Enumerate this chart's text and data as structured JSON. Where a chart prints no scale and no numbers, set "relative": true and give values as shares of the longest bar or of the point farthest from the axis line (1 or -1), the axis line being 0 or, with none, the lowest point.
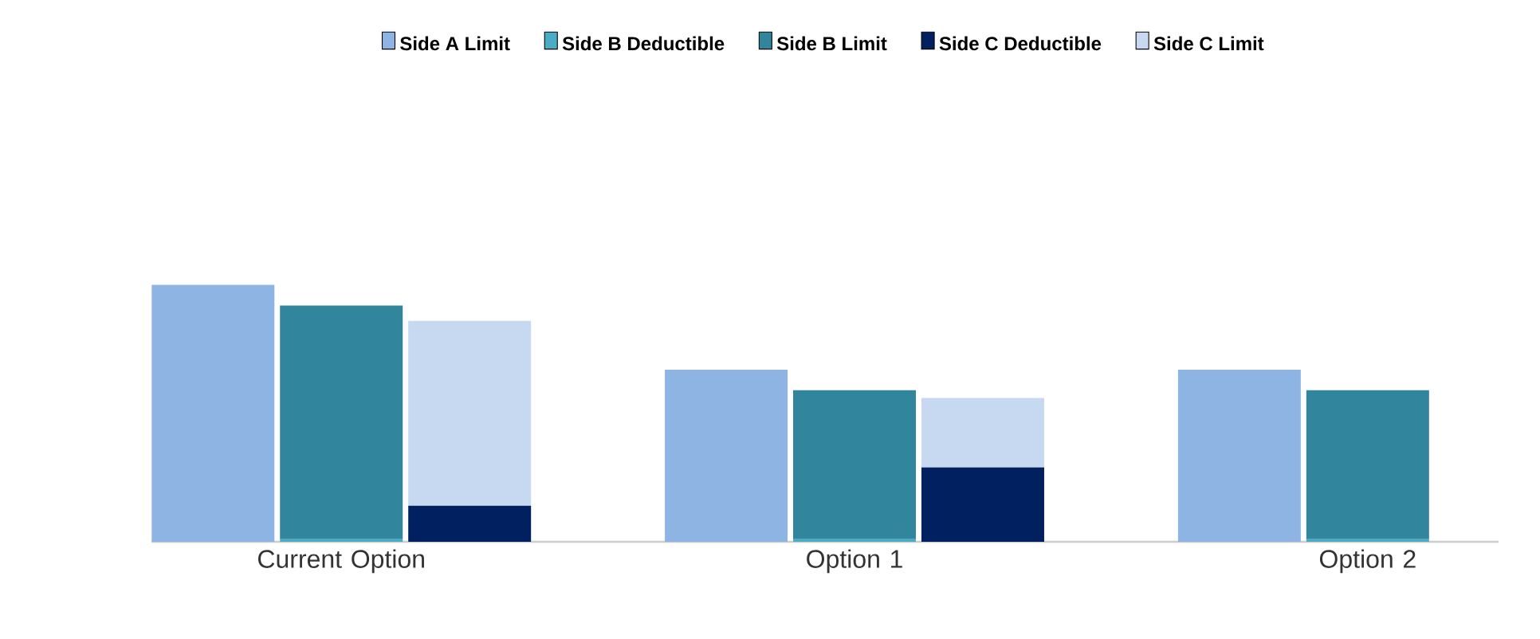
{
  "chart_data": {
    "type": "bar",
    "stacked": true,
    "relative": true,
    "legend": "top",
    "categories": [
      null,
      "Current Option",
      null,
      null,
      null,
      "Option 1",
      null,
      null,
      null,
      "Option 2",
      null
    ],
    "series": [
      {
        "name": "Side A Limit",
        "color": "#8eb4e3",
        "values": [
          1,
          null,
          null,
          null,
          0.67,
          null,
          null,
          null,
          0.67,
          null,
          null
        ]
      },
      {
        "name": "Side B Deductible",
        "color": "#4bacc6",
        "values": [
          null,
          0.01,
          null,
          null,
          null,
          0.01,
          null,
          null,
          null,
          0.01,
          null
        ]
      },
      {
        "name": "Side B Limit",
        "color": "#31859c",
        "values": [
          null,
          0.91,
          null,
          null,
          null,
          0.58,
          null,
          null,
          null,
          0.58,
          null
        ]
      },
      {
        "name": "Side C Deductible",
        "color": "#002060",
        "values": [
          null,
          null,
          0.14,
          null,
          null,
          null,
          0.29,
          null,
          null,
          null,
          null
        ]
      },
      {
        "name": "Side C Limit",
        "color": "#c6d9f1",
        "values": [
          null,
          null,
          0.72,
          null,
          null,
          null,
          0.27,
          null,
          null,
          null,
          null
        ]
      }
    ]
  }
}
